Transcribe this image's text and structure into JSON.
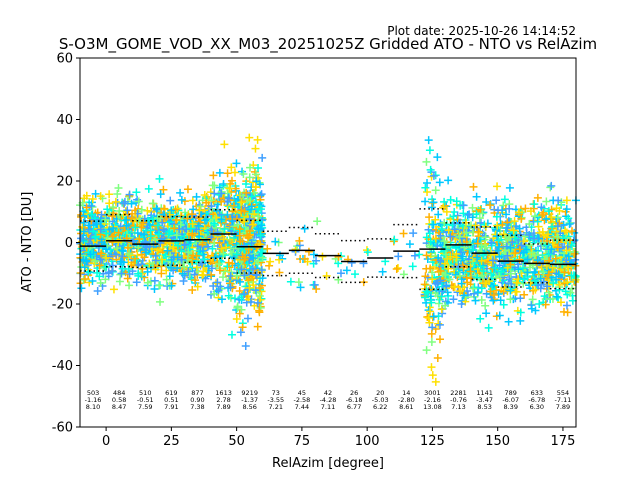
{
  "chart_data": {
    "type": "scatter",
    "plot_date": "Plot date: 2025-10-26 14:14:52",
    "title": "S-O3M_GOME_VOD_XX_M03_20251025Z Gridded ATO - NTO vs RelAzim",
    "xlabel": "RelAzim [degree]",
    "ylabel": "ATO - NTO [DU]",
    "xlim": [
      -10,
      180
    ],
    "ylim": [
      -60,
      60
    ],
    "xticks": [
      0,
      25,
      50,
      75,
      100,
      125,
      150,
      175
    ],
    "yticks": [
      -60,
      -40,
      -20,
      0,
      20,
      40,
      60
    ],
    "marker": "+",
    "colors": [
      "#00c8ff",
      "#00ffe0",
      "#80ff80",
      "#ffe000",
      "#ffb000",
      "#40a0ff"
    ],
    "point_clusters": [
      {
        "x": [
          -10,
          40
        ],
        "y": [
          -20,
          22
        ],
        "density": "high"
      },
      {
        "x": [
          40,
          60
        ],
        "y": [
          -30,
          35
        ],
        "density": "high"
      },
      {
        "x": [
          50,
          60
        ],
        "y": [
          -40,
          38
        ],
        "density": "high"
      },
      {
        "x": [
          60,
          120
        ],
        "y": [
          -20,
          10
        ],
        "density": "sparse"
      },
      {
        "x": [
          122,
          128
        ],
        "y": [
          -57,
          46
        ],
        "density": "high"
      },
      {
        "x": [
          128,
          180
        ],
        "y": [
          -30,
          22
        ],
        "density": "high"
      }
    ],
    "bins": [
      {
        "x": -5,
        "count": "503",
        "mean": "-1.16",
        "std": "8.10"
      },
      {
        "x": 5,
        "count": "484",
        "mean": "0.58",
        "std": "8.47"
      },
      {
        "x": 15,
        "count": "510",
        "mean": "-0.51",
        "std": "7.59"
      },
      {
        "x": 25,
        "count": "619",
        "mean": "0.51",
        "std": "7.91"
      },
      {
        "x": 35,
        "count": "877",
        "mean": "0.90",
        "std": "7.38"
      },
      {
        "x": 45,
        "count": "1613",
        "mean": "2.78",
        "std": "7.89"
      },
      {
        "x": 55,
        "count": "9219",
        "mean": "-1.37",
        "std": "8.56"
      },
      {
        "x": 65,
        "count": "73",
        "mean": "-3.55",
        "std": "7.21"
      },
      {
        "x": 75,
        "count": "45",
        "mean": "-2.58",
        "std": "7.44"
      },
      {
        "x": 85,
        "count": "42",
        "mean": "-4.28",
        "std": "7.11"
      },
      {
        "x": 95,
        "count": "26",
        "mean": "-6.18",
        "std": "6.77"
      },
      {
        "x": 105,
        "count": "20",
        "mean": "-5.03",
        "std": "6.22"
      },
      {
        "x": 115,
        "count": "14",
        "mean": "-2.80",
        "std": "8.61"
      },
      {
        "x": 125,
        "count": "3001",
        "mean": "-2.16",
        "std": "13.08"
      },
      {
        "x": 135,
        "count": "2281",
        "mean": "-0.76",
        "std": "7.13"
      },
      {
        "x": 145,
        "count": "1141",
        "mean": "-3.47",
        "std": "8.53"
      },
      {
        "x": 155,
        "count": "789",
        "mean": "-6.07",
        "std": "8.39"
      },
      {
        "x": 165,
        "count": "633",
        "mean": "-6.78",
        "std": "6.30"
      },
      {
        "x": 175,
        "count": "554",
        "mean": "-7.11",
        "std": "7.89"
      }
    ]
  }
}
